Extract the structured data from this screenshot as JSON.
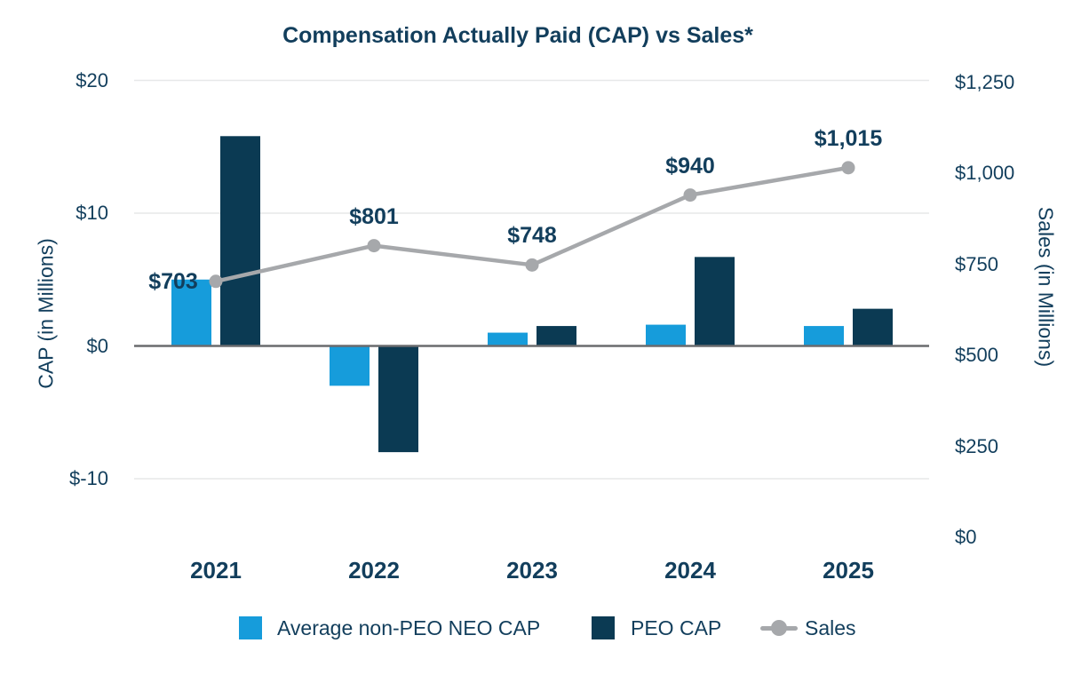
{
  "chart_data": {
    "type": "bar+line combo",
    "title": "Compensation Actually Paid (CAP) vs Sales*",
    "categories": [
      "2021",
      "2022",
      "2023",
      "2024",
      "2025"
    ],
    "series": [
      {
        "name": "Average non-PEO NEO CAP",
        "type": "bar",
        "axis": "left",
        "color": "#169CDB",
        "values": [
          5.0,
          -3.0,
          1.0,
          1.6,
          1.5
        ]
      },
      {
        "name": "PEO CAP",
        "type": "bar",
        "axis": "left",
        "color": "#0B3A53",
        "values": [
          15.8,
          -8.0,
          1.5,
          6.7,
          2.8
        ]
      },
      {
        "name": "Sales",
        "type": "line",
        "axis": "right",
        "color": "#A6A8AB",
        "values": [
          703,
          801,
          748,
          940,
          1015
        ],
        "point_labels": [
          "$703",
          "$801",
          "$748",
          "$940",
          "$1,015"
        ],
        "label_positions": [
          "left",
          "above",
          "above",
          "above",
          "above"
        ]
      }
    ],
    "left_axis": {
      "title": "CAP (in Millions)",
      "range": [
        -10,
        20
      ],
      "ticks": [
        {
          "label": "$20",
          "value": 20
        },
        {
          "label": "$10",
          "value": 10
        },
        {
          "label": "$0",
          "value": 0
        },
        {
          "label": "$-10",
          "value": -10
        }
      ]
    },
    "right_axis": {
      "title": "Sales (in Millions)",
      "range": [
        0,
        1250
      ],
      "ticks": [
        {
          "label": "$1,250",
          "value": 1250
        },
        {
          "label": "$1,000",
          "value": 1000
        },
        {
          "label": "$750",
          "value": 750
        },
        {
          "label": "$500",
          "value": 500
        },
        {
          "label": "$250",
          "value": 250
        },
        {
          "label": "$0",
          "value": 0
        }
      ]
    },
    "legend_position": "bottom",
    "gridlines": "horizontal",
    "style": {
      "text_color": "#123E5C",
      "grid_color": "#E7E8E9",
      "zero_line_color": "#6A6B6E",
      "background": "#FFFFFF"
    }
  }
}
